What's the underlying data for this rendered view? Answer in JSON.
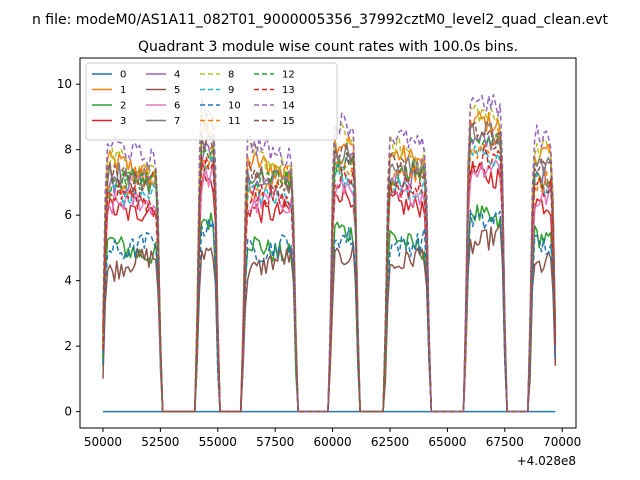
{
  "chart_data": {
    "type": "line",
    "suptitle": "n file: modeM0/AS1A11_082T01_9000005356_37992cztM0_level2_quad_clean.evt",
    "title": "Quadrant 3 module wise count rates with 100.0s bins.",
    "xlabel": "",
    "ylabel": "",
    "offset_label": "+4.028e8",
    "xlim": [
      49000,
      70600
    ],
    "ylim": [
      -0.5,
      10.8
    ],
    "xticks": [
      50000,
      52500,
      55000,
      57500,
      60000,
      62500,
      65000,
      67500,
      70000
    ],
    "yticks": [
      0,
      2,
      4,
      6,
      8,
      10
    ],
    "xtick_labels": [
      "50000",
      "52500",
      "55000",
      "57500",
      "60000",
      "62500",
      "65000",
      "67500",
      "70000"
    ],
    "ytick_labels": [
      "0",
      "2",
      "4",
      "6",
      "8",
      "10"
    ],
    "legend": {
      "placement": "upper-left",
      "columns": 4
    },
    "x_range": [
      50000,
      69700
    ],
    "bin_seconds": 100,
    "on_segments": [
      {
        "start": 50000,
        "end": 52500
      },
      {
        "start": 54100,
        "end": 55000
      },
      {
        "start": 56100,
        "end": 58400
      },
      {
        "start": 59900,
        "end": 61100
      },
      {
        "start": 62300,
        "end": 64200
      },
      {
        "start": 65800,
        "end": 67500
      },
      {
        "start": 68600,
        "end": 69700
      }
    ],
    "series": [
      {
        "name": "0",
        "style": "solid",
        "color": "#1f77b4",
        "level": 0.0
      },
      {
        "name": "1",
        "style": "solid",
        "color": "#ff7f0e",
        "level": 7.6
      },
      {
        "name": "2",
        "style": "solid",
        "color": "#2ca02c",
        "level": 5.2
      },
      {
        "name": "3",
        "style": "solid",
        "color": "#d62728",
        "level": 6.5
      },
      {
        "name": "4",
        "style": "solid",
        "color": "#9467bd",
        "level": 7.4
      },
      {
        "name": "5",
        "style": "solid",
        "color": "#8c564b",
        "level": 4.6
      },
      {
        "name": "6",
        "style": "solid",
        "color": "#e377c2",
        "level": 6.4
      },
      {
        "name": "7",
        "style": "solid",
        "color": "#7f7f7f",
        "level": 7.3
      },
      {
        "name": "8",
        "style": "dashed",
        "color": "#bcbd22",
        "level": 7.9
      },
      {
        "name": "9",
        "style": "dashed",
        "color": "#17becf",
        "level": 7.0
      },
      {
        "name": "10",
        "style": "dashed",
        "color": "#1f77b4",
        "level": 5.3
      },
      {
        "name": "11",
        "style": "dashed",
        "color": "#ff7f0e",
        "level": 7.2
      },
      {
        "name": "12",
        "style": "dashed",
        "color": "#2ca02c",
        "level": 7.1
      },
      {
        "name": "13",
        "style": "dashed",
        "color": "#d62728",
        "level": 6.6
      },
      {
        "name": "14",
        "style": "dashed",
        "color": "#9467bd",
        "level": 8.2
      },
      {
        "name": "15",
        "style": "dashed",
        "color": "#8c564b",
        "level": 7.5
      }
    ]
  }
}
